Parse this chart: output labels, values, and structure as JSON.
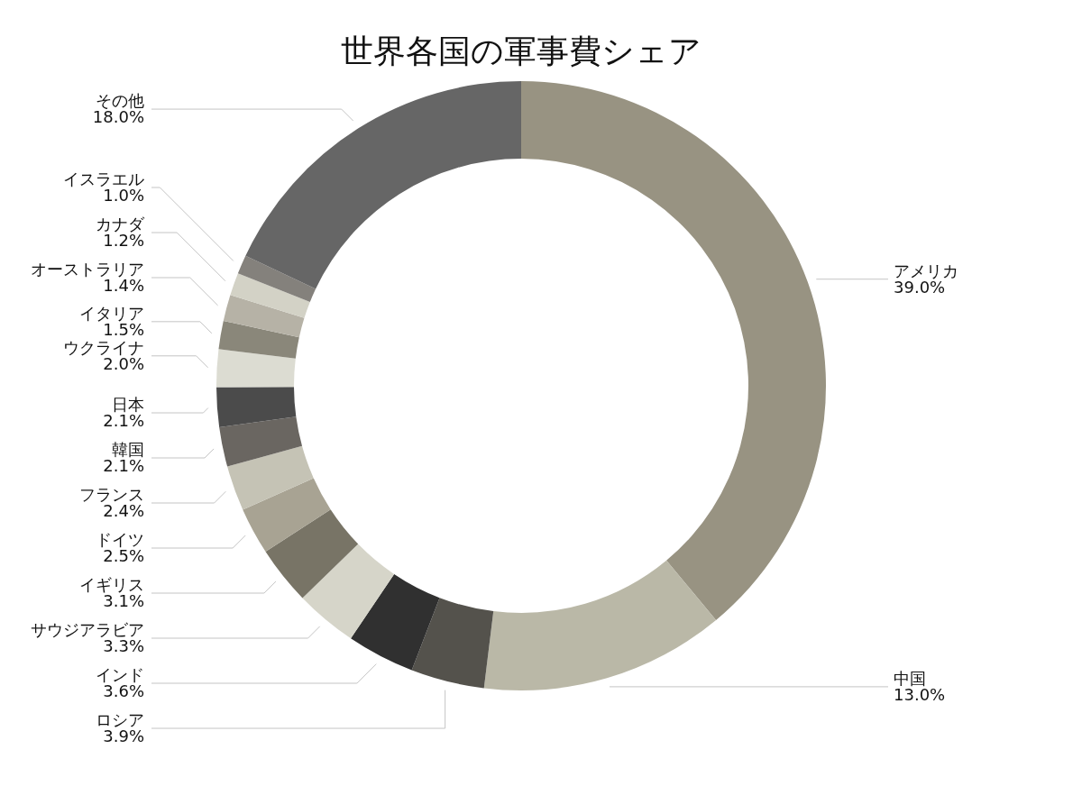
{
  "chart_data": {
    "type": "donut",
    "title": "世界各国の軍事費シェア",
    "categories": [
      "アメリカ",
      "中国",
      "ロシア",
      "インド",
      "サウジアラビア",
      "イギリス",
      "ドイツ",
      "フランス",
      "韓国",
      "日本",
      "ウクライナ",
      "イタリア",
      "オーストラリア",
      "カナダ",
      "イスラエル",
      "その他"
    ],
    "values": [
      39.0,
      13.0,
      3.9,
      3.6,
      3.3,
      3.1,
      2.5,
      2.4,
      2.1,
      2.1,
      2.0,
      1.5,
      1.4,
      1.2,
      1.0,
      18.0
    ],
    "value_labels": [
      "39.0%",
      "13.0%",
      "3.9%",
      "3.6%",
      "3.3%",
      "3.1%",
      "2.5%",
      "2.4%",
      "2.1%",
      "2.1%",
      "2.0%",
      "1.5%",
      "1.4%",
      "1.2%",
      "1.0%",
      "18.0%"
    ],
    "colors": [
      "#989382",
      "#bab8a7",
      "#54524c",
      "#303030",
      "#d6d5c9",
      "#787466",
      "#a8a393",
      "#c5c3b5",
      "#6a6661",
      "#4b4b4b",
      "#dcdcd2",
      "#8a877a",
      "#b6b2a6",
      "#d3d2c6",
      "#84817c",
      "#666666"
    ]
  }
}
